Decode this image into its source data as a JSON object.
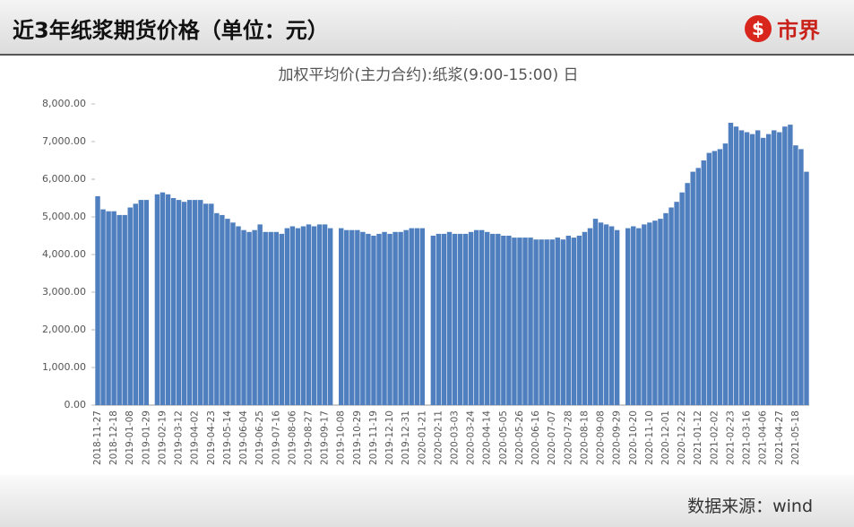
{
  "header": {
    "title": "近3年纸浆期货价格（单位：元）",
    "logo": "市界"
  },
  "footer": {
    "source": "数据来源：wind"
  },
  "chart_data": {
    "type": "bar",
    "title": "加权平均价(主力合约):纸浆(9:00-15:00) 日",
    "color": "#4f7fbe",
    "ylim": [
      0,
      8000
    ],
    "yticks": [
      {
        "value": 0,
        "label": "0.00"
      },
      {
        "value": 1000,
        "label": "1,000.00"
      },
      {
        "value": 2000,
        "label": "2,000.00"
      },
      {
        "value": 3000,
        "label": "3,000.00"
      },
      {
        "value": 4000,
        "label": "4,000.00"
      },
      {
        "value": 5000,
        "label": "5,000.00"
      },
      {
        "value": 6000,
        "label": "6,000.00"
      },
      {
        "value": 7000,
        "label": "7,000.00"
      },
      {
        "value": 8000,
        "label": "8,000.00"
      }
    ],
    "categories": [
      "2018-11-27",
      null,
      null,
      "2018-12-18",
      null,
      null,
      "2019-01-08",
      null,
      null,
      "2019-01-29",
      null,
      null,
      "2019-02-19",
      null,
      null,
      "2019-03-12",
      null,
      null,
      "2019-04-02",
      null,
      null,
      "2019-04-23",
      null,
      null,
      "2019-05-14",
      null,
      null,
      "2019-06-04",
      null,
      null,
      "2019-06-25",
      null,
      null,
      "2019-07-16",
      null,
      null,
      "2019-08-06",
      null,
      null,
      "2019-08-27",
      null,
      null,
      "2019-09-17",
      null,
      null,
      "2019-10-08",
      null,
      null,
      "2019-10-29",
      null,
      null,
      "2019-11-19",
      null,
      null,
      "2019-12-10",
      null,
      null,
      "2019-12-31",
      null,
      null,
      "2020-01-21",
      null,
      null,
      "2020-02-11",
      null,
      null,
      "2020-03-03",
      null,
      null,
      "2020-03-24",
      null,
      null,
      "2020-04-14",
      null,
      null,
      "2020-05-05",
      null,
      null,
      "2020-05-26",
      null,
      null,
      "2020-06-16",
      null,
      null,
      "2020-07-07",
      null,
      null,
      "2020-07-28",
      null,
      null,
      "2020-08-18",
      null,
      null,
      "2020-09-08",
      null,
      null,
      "2020-09-29",
      null,
      null,
      "2020-10-20",
      null,
      null,
      "2020-11-10",
      null,
      null,
      "2020-12-01",
      null,
      null,
      "2020-12-22",
      null,
      null,
      "2021-01-12",
      null,
      null,
      "2021-02-02",
      null,
      null,
      "2021-02-23",
      null,
      null,
      "2021-03-16",
      null,
      null,
      "2021-04-06",
      null,
      null,
      "2021-04-27",
      null,
      null,
      "2021-05-18",
      null,
      null
    ],
    "values": [
      5550,
      5200,
      5150,
      5150,
      5050,
      5050,
      5250,
      5350,
      5450,
      5450,
      null,
      5600,
      5650,
      5600,
      5500,
      5450,
      5400,
      5450,
      5450,
      5450,
      5350,
      5350,
      5100,
      5050,
      4950,
      4850,
      4750,
      4650,
      4600,
      4650,
      4800,
      4600,
      4600,
      4600,
      4550,
      4700,
      4750,
      4700,
      4750,
      4800,
      4750,
      4800,
      4800,
      4700,
      null,
      4700,
      4650,
      4650,
      4650,
      4600,
      4550,
      4500,
      4550,
      4600,
      4550,
      4600,
      4600,
      4650,
      4700,
      4700,
      4700,
      null,
      4500,
      4550,
      4550,
      4600,
      4550,
      4550,
      4550,
      4600,
      4650,
      4650,
      4600,
      4550,
      4550,
      4500,
      4500,
      4450,
      4450,
      4450,
      4450,
      4400,
      4400,
      4400,
      4400,
      4450,
      4400,
      4500,
      4450,
      4500,
      4600,
      4700,
      4950,
      4850,
      4800,
      4750,
      4650,
      null,
      4700,
      4750,
      4700,
      4800,
      4850,
      4900,
      4950,
      5100,
      5250,
      5400,
      5650,
      5900,
      6200,
      6300,
      6500,
      6700,
      6750,
      6800,
      6950,
      7500,
      7400,
      7300,
      7250,
      7200,
      7300,
      7100,
      7200,
      7300,
      7250,
      7400,
      7450,
      6900,
      6800,
      6200
    ]
  }
}
